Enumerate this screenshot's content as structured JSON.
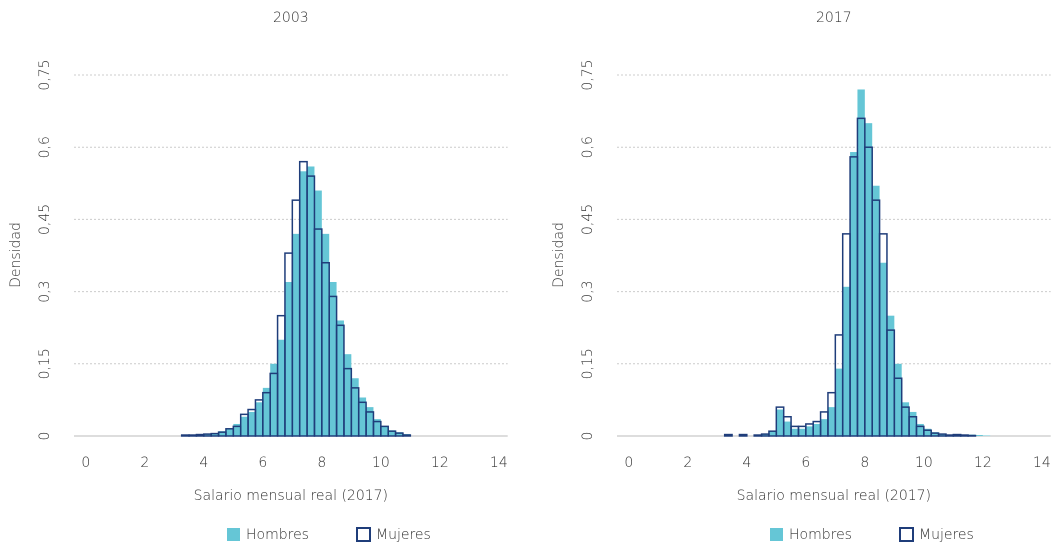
{
  "chart_data": [
    {
      "type": "histogram",
      "title": "2003",
      "xlabel": "Salario mensual real (2017)",
      "ylabel": "Densidad",
      "bins": [
        3.0,
        3.25,
        3.5,
        3.75,
        4.0,
        4.25,
        4.5,
        4.75,
        5.0,
        5.25,
        5.5,
        5.75,
        6.0,
        6.25,
        6.5,
        6.75,
        7.0,
        7.25,
        7.5,
        7.75,
        8.0,
        8.25,
        8.5,
        8.75,
        9.0,
        9.25,
        9.5,
        9.75,
        10.0,
        10.25,
        10.5,
        10.75,
        11.0,
        11.25,
        11.5,
        11.75,
        12.0,
        12.25
      ],
      "series": [
        {
          "name": "Hombres",
          "color": "#65c6d6",
          "values": [
            0,
            0,
            0.002,
            0.003,
            0.004,
            0.006,
            0.01,
            0.015,
            0.025,
            0.04,
            0.05,
            0.07,
            0.1,
            0.15,
            0.2,
            0.32,
            0.42,
            0.55,
            0.56,
            0.51,
            0.42,
            0.32,
            0.24,
            0.17,
            0.12,
            0.08,
            0.06,
            0.035,
            0.02,
            0.012,
            0.008,
            0.004,
            0,
            0,
            0,
            0,
            0
          ]
        },
        {
          "name": "Mujeres",
          "color": "#1f3d7a",
          "values": [
            0,
            0.002,
            0.002,
            0.003,
            0.004,
            0.005,
            0.008,
            0.015,
            0.02,
            0.045,
            0.055,
            0.075,
            0.09,
            0.13,
            0.25,
            0.38,
            0.49,
            0.57,
            0.54,
            0.43,
            0.36,
            0.29,
            0.23,
            0.14,
            0.1,
            0.07,
            0.05,
            0.03,
            0.02,
            0.01,
            0.006,
            0.002,
            0,
            0,
            0,
            0,
            0
          ]
        }
      ],
      "xlim": [
        -0.4,
        14.3
      ],
      "xticks": [
        0,
        2,
        4,
        6,
        8,
        10,
        12,
        14
      ],
      "ylim": [
        0,
        0.78
      ],
      "yticks": [
        0,
        {
          "value": 0.15,
          "label": "0,15"
        },
        {
          "value": 0.3,
          "label": "0,3"
        },
        {
          "value": 0.45,
          "label": "0,45"
        },
        {
          "value": 0.6,
          "label": "0,6"
        },
        {
          "value": 0.75,
          "label": "0,75"
        }
      ],
      "grid": true
    },
    {
      "type": "histogram",
      "title": "2017",
      "xlabel": "Salario mensual real (2017)",
      "ylabel": "Densidad",
      "bins": [
        3.0,
        3.25,
        3.5,
        3.75,
        4.0,
        4.25,
        4.5,
        4.75,
        5.0,
        5.25,
        5.5,
        5.75,
        6.0,
        6.25,
        6.5,
        6.75,
        7.0,
        7.25,
        7.5,
        7.75,
        8.0,
        8.25,
        8.5,
        8.75,
        9.0,
        9.25,
        9.5,
        9.75,
        10.0,
        10.25,
        10.5,
        10.75,
        11.0,
        11.25,
        11.5,
        11.75,
        12.0,
        12.25
      ],
      "series": [
        {
          "name": "Hombres",
          "color": "#65c6d6",
          "values": [
            0,
            0,
            0,
            0,
            0,
            0.002,
            0.004,
            0.01,
            0.055,
            0.03,
            0.015,
            0.015,
            0.02,
            0.025,
            0.035,
            0.06,
            0.14,
            0.31,
            0.59,
            0.72,
            0.65,
            0.52,
            0.36,
            0.25,
            0.15,
            0.07,
            0.05,
            0.025,
            0.015,
            0.008,
            0.005,
            0.003,
            0.002,
            0.002,
            0.003,
            0.002,
            0.001
          ]
        },
        {
          "name": "Mujeres",
          "color": "#1f3d7a",
          "values": [
            0,
            0.003,
            0,
            0.003,
            0,
            0.002,
            0.004,
            0.01,
            0.06,
            0.04,
            0.02,
            0.02,
            0.025,
            0.03,
            0.05,
            0.09,
            0.21,
            0.42,
            0.58,
            0.66,
            0.6,
            0.49,
            0.42,
            0.22,
            0.12,
            0.06,
            0.04,
            0.02,
            0.012,
            0.006,
            0.004,
            0.002,
            0.003,
            0.002,
            0.001,
            0,
            0
          ]
        }
      ],
      "xlim": [
        -0.4,
        14.3
      ],
      "xticks": [
        0,
        2,
        4,
        6,
        8,
        10,
        12,
        14
      ],
      "ylim": [
        0,
        0.78
      ],
      "yticks": [
        0,
        {
          "value": 0.15,
          "label": "0,15"
        },
        {
          "value": 0.3,
          "label": "0,3"
        },
        {
          "value": 0.45,
          "label": "0,45"
        },
        {
          "value": 0.6,
          "label": "0,6"
        },
        {
          "value": 0.75,
          "label": "0,75"
        }
      ],
      "grid": true
    }
  ]
}
